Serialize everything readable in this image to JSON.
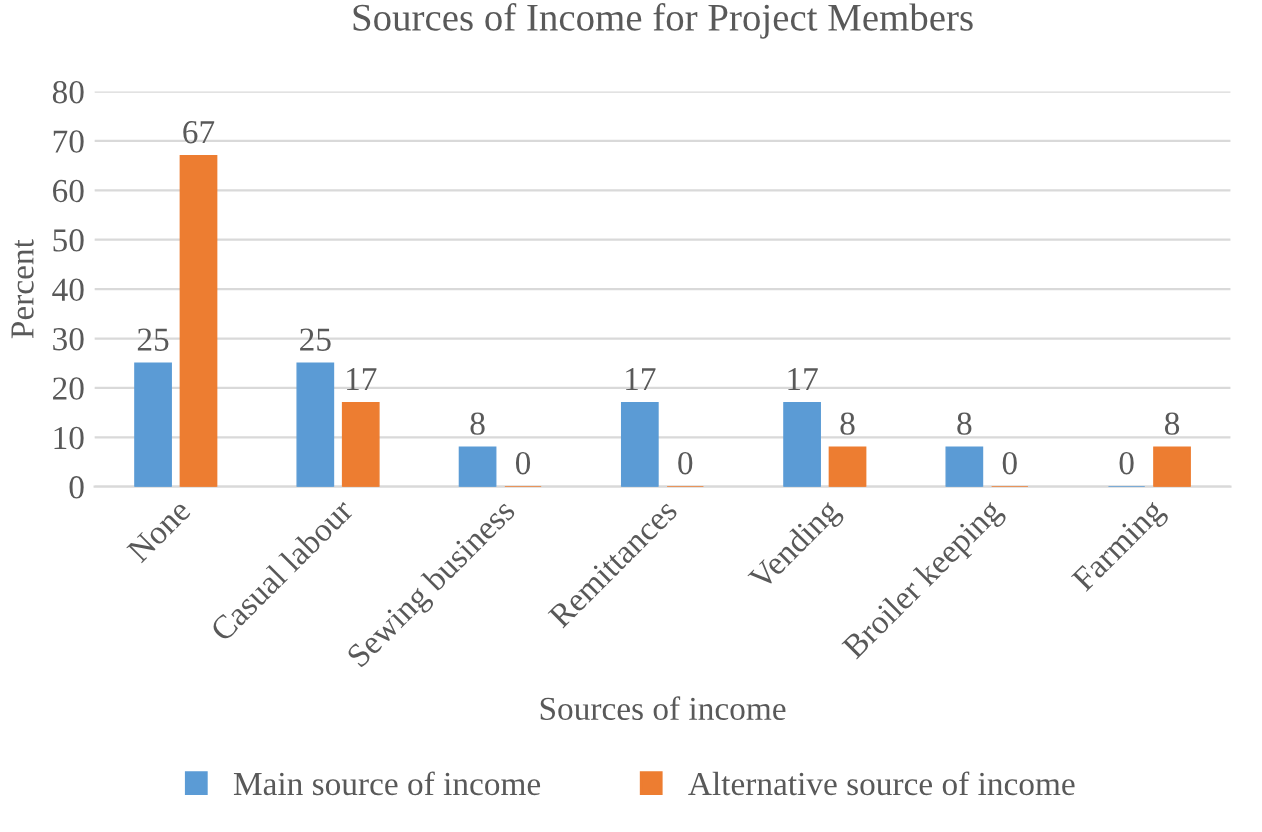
{
  "chart_data": {
    "type": "bar",
    "title": "Sources of Income for Project Members",
    "xlabel": "Sources of income",
    "ylabel": "Percent",
    "categories": [
      "None",
      "Casual labour",
      "Sewing business",
      "Remittances",
      "Vending",
      "Broiler keeping",
      "Farming"
    ],
    "series": [
      {
        "name": "Main source of income",
        "color": "#5b9bd5",
        "values": [
          25,
          25,
          8,
          17,
          17,
          8,
          0
        ]
      },
      {
        "name": "Alternative source of income",
        "color": "#ed7d31",
        "values": [
          67,
          17,
          0,
          0,
          8,
          0,
          8
        ]
      }
    ],
    "ylim": [
      0,
      80
    ],
    "yticks": [
      0,
      10,
      20,
      30,
      40,
      50,
      60,
      70,
      80
    ],
    "grid": "y",
    "legend": "bottom",
    "data_labels": true
  }
}
